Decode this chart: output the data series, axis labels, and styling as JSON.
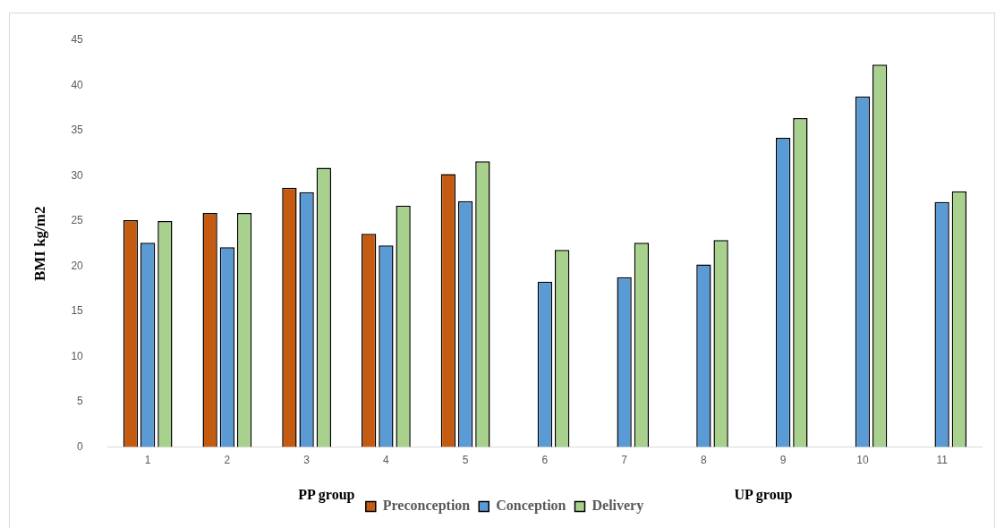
{
  "chart_data": {
    "type": "bar",
    "ylabel": "BMI kg/m2",
    "categories": [
      "1",
      "2",
      "3",
      "4",
      "5",
      "6",
      "7",
      "8",
      "9",
      "10",
      "11"
    ],
    "series": [
      {
        "name": "Preconception",
        "color": "#c55a11",
        "values": [
          25.1,
          25.9,
          28.7,
          23.6,
          30.2,
          null,
          null,
          null,
          null,
          null,
          null
        ]
      },
      {
        "name": "Conception",
        "color": "#5b9bd5",
        "values": [
          22.6,
          22.1,
          28.2,
          22.3,
          27.2,
          18.3,
          18.8,
          20.2,
          34.2,
          38.8,
          27.1
        ]
      },
      {
        "name": "Delivery",
        "color": "#a9d18e",
        "values": [
          25.0,
          25.9,
          30.9,
          26.7,
          31.6,
          21.8,
          22.6,
          22.9,
          36.4,
          42.3,
          28.3
        ]
      }
    ],
    "ylim": [
      0,
      45
    ],
    "yticks": [
      0,
      5,
      10,
      15,
      20,
      25,
      30,
      35,
      40,
      45
    ],
    "grid": false,
    "legend": "bottom",
    "annotations": [
      "PP group",
      "UP group"
    ]
  }
}
